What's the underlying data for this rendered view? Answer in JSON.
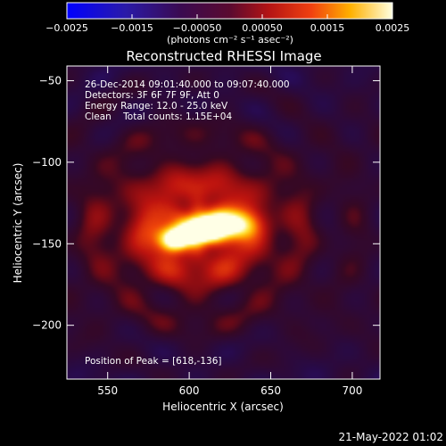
{
  "colorbar": {
    "ticks": [
      "-0.0025",
      "-0.0015",
      "-0.00050",
      "0.00050",
      "0.0015",
      "0.0025"
    ],
    "unit_label": "(photons cm⁻² s⁻¹ asec⁻²)",
    "min": -0.0025,
    "max": 0.0025
  },
  "title": "Reconstructed RHESSI Image",
  "annotations": {
    "time": "26-Dec-2014 09:01:40.000 to 09:07:40.000",
    "detectors": "Detectors: 3F 6F 7F 9F, Att 0",
    "energy": "Energy Range: 12.0 - 25.0 keV",
    "clean": "Clean    Total counts: 1.15E+04",
    "peak": "Position of Peak = [618,-136]"
  },
  "footer": {
    "timestamp": "21-May-2022 01:02"
  },
  "chart_data": {
    "type": "heatmap",
    "title": "Reconstructed RHESSI Image",
    "xlabel": "Heliocentric X (arcsec)",
    "ylabel": "Heliocentric Y (arcsec)",
    "xlim": [
      525,
      717
    ],
    "ylim": [
      -233,
      -41
    ],
    "xticks": [
      550,
      600,
      650,
      700
    ],
    "yticks": [
      -50,
      -100,
      -150,
      -200
    ],
    "colormap": "hot-blue",
    "peak": [
      618,
      -136
    ],
    "sources": [
      {
        "x": 620,
        "y": -138,
        "sx": 13,
        "sy": 6,
        "amp": 1.0
      },
      {
        "x": 591,
        "y": -148,
        "sx": 7,
        "sy": 5,
        "amp": 0.9
      },
      {
        "x": 605,
        "y": -143,
        "sx": 12,
        "sy": 5,
        "amp": 0.75
      },
      {
        "x": 605,
        "y": -140,
        "sx": 40,
        "sy": 28,
        "amp": 0.55
      }
    ]
  }
}
